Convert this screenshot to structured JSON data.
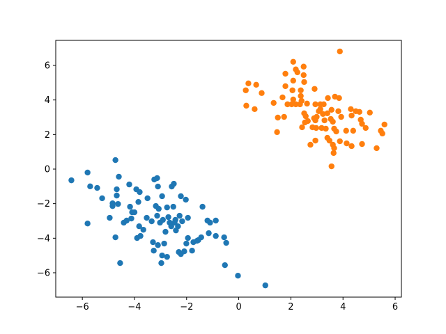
{
  "chart_data": {
    "type": "scatter",
    "xlim": [
      -7.02,
      6.24
    ],
    "ylim": [
      -7.41,
      7.45
    ],
    "xticks": [
      {
        "value": -6,
        "label": "−6"
      },
      {
        "value": -4,
        "label": "−4"
      },
      {
        "value": -2,
        "label": "−2"
      },
      0,
      2,
      4,
      6
    ],
    "yticks": [
      {
        "value": -6,
        "label": "−6"
      },
      {
        "value": -4,
        "label": "−4"
      },
      {
        "value": -2,
        "label": "−2"
      },
      0,
      2,
      4,
      6
    ],
    "series": [
      {
        "color": "#1f77b4",
        "x": [
          -6.42,
          -5.8,
          -5.7,
          -5.43,
          -5.8,
          -5.24,
          -4.95,
          -4.84,
          -4.84,
          -4.73,
          -4.68,
          -4.68,
          -4.63,
          -4.73,
          -4.6,
          -4.55,
          -4.41,
          -4.3,
          -4.2,
          -4.17,
          -4.12,
          -4.09,
          -4.0,
          -3.93,
          -3.9,
          -3.85,
          -3.82,
          -3.8,
          -3.77,
          -3.66,
          -3.53,
          -3.5,
          -3.34,
          -3.29,
          -3.26,
          -3.24,
          -3.18,
          -3.13,
          -3.13,
          -3.1,
          -3.1,
          -3.07,
          -3.02,
          -2.97,
          -2.94,
          -2.91,
          -2.94,
          -2.86,
          -2.81,
          -2.75,
          -2.75,
          -2.7,
          -2.65,
          -2.59,
          -2.57,
          -2.51,
          -2.49,
          -2.46,
          -2.43,
          -2.41,
          -2.33,
          -2.3,
          -2.27,
          -2.22,
          -2.22,
          -2.17,
          -2.09,
          -2.03,
          -2.01,
          -1.95,
          -1.95,
          -1.79,
          -1.74,
          -1.6,
          -1.55,
          -1.39,
          -1.44,
          -1.2,
          -1.1,
          -1.15,
          -0.88,
          -0.88,
          -0.56,
          -0.53,
          -0.48,
          -0.03,
          1.02
        ],
        "values": [
          -0.65,
          -0.2,
          -1.0,
          -1.09,
          -3.15,
          -1.69,
          -2.82,
          -2.14,
          -1.98,
          0.52,
          -1.17,
          -1.53,
          -2.02,
          -3.95,
          -0.44,
          -5.44,
          -3.1,
          -2.98,
          -0.89,
          -2.18,
          -2.86,
          -2.5,
          -2.5,
          -1.17,
          -3.99,
          -1.9,
          -3.31,
          -1.33,
          -3.87,
          -3.51,
          -2.82,
          -1.69,
          -3.02,
          -4.23,
          -4.72,
          -0.6,
          -2.14,
          -2.7,
          -0.52,
          -1.01,
          -4.4,
          -2.3,
          -3.1,
          -5.44,
          -1.57,
          -2.94,
          -5.0,
          -4.31,
          -3.63,
          -2.22,
          -5.08,
          -2.78,
          -3.1,
          -3.31,
          -1.01,
          -2.18,
          -0.85,
          -3.1,
          -2.94,
          -3.55,
          -3.31,
          -4.8,
          -2.7,
          -1.57,
          -4.92,
          -3.02,
          -4.76,
          -1.77,
          -4.31,
          -3.99,
          -2.82,
          -4.72,
          -4.23,
          -4.15,
          -4.11,
          -2.18,
          -3.95,
          -2.98,
          -3.1,
          -3.71,
          -2.98,
          -3.87,
          -3.95,
          -5.56,
          -4.27,
          -6.17,
          -6.73
        ]
      },
      {
        "color": "#ff7f0e",
        "x": [
          3.88,
          2.09,
          2.49,
          2.19,
          2.25,
          1.79,
          2.49,
          2.09,
          2.51,
          0.37,
          0.67,
          1.79,
          0.27,
          0.88,
          2.06,
          2.38,
          2.91,
          2.38,
          1.68,
          3.69,
          3.85,
          3.42,
          2.09,
          2.41,
          1.34,
          1.87,
          2.03,
          2.19,
          2.35,
          2.62,
          2.94,
          3.13,
          3.26,
          0.29,
          0.61,
          3.13,
          3.56,
          3.07,
          4.3,
          4.49,
          4.63,
          5.03,
          2.51,
          2.57,
          2.99,
          3.23,
          3.4,
          3.82,
          1.74,
          1.5,
          2.89,
          3.53,
          3.93,
          4.33,
          2.65,
          2.54,
          2.94,
          3.29,
          3.61,
          4.68,
          4.73,
          5.59,
          2.97,
          3.18,
          3.34,
          2.43,
          2.83,
          3.66,
          3.74,
          4.12,
          4.39,
          4.87,
          5.45,
          5.51,
          1.47,
          3.4,
          3.48,
          2.94,
          3.88,
          4.14,
          4.73,
          3.61,
          4.33,
          2.75,
          3.66,
          5.29,
          3.64,
          3.56
        ],
        "values": [
          6.81,
          6.21,
          5.93,
          5.77,
          5.6,
          5.52,
          5.44,
          5.12,
          5.04,
          4.96,
          4.88,
          4.8,
          4.56,
          4.4,
          4.56,
          4.56,
          4.64,
          4.23,
          4.15,
          4.19,
          4.11,
          4.11,
          4.03,
          3.95,
          3.83,
          3.75,
          3.75,
          3.75,
          3.75,
          3.79,
          3.75,
          3.75,
          3.75,
          3.67,
          3.47,
          3.47,
          3.43,
          3.35,
          3.47,
          3.35,
          3.31,
          3.27,
          3.23,
          3.06,
          3.02,
          3.19,
          3.23,
          3.35,
          3.02,
          2.98,
          2.94,
          2.9,
          3.02,
          3.1,
          2.78,
          2.7,
          2.82,
          2.82,
          2.74,
          2.86,
          2.62,
          2.58,
          2.38,
          2.38,
          2.34,
          2.42,
          2.42,
          2.34,
          2.18,
          2.22,
          2.22,
          2.38,
          2.22,
          2.06,
          2.14,
          1.81,
          1.65,
          1.65,
          1.61,
          1.49,
          1.45,
          1.41,
          1.33,
          1.41,
          1.21,
          1.21,
          0.93,
          0.16
        ]
      }
    ]
  }
}
